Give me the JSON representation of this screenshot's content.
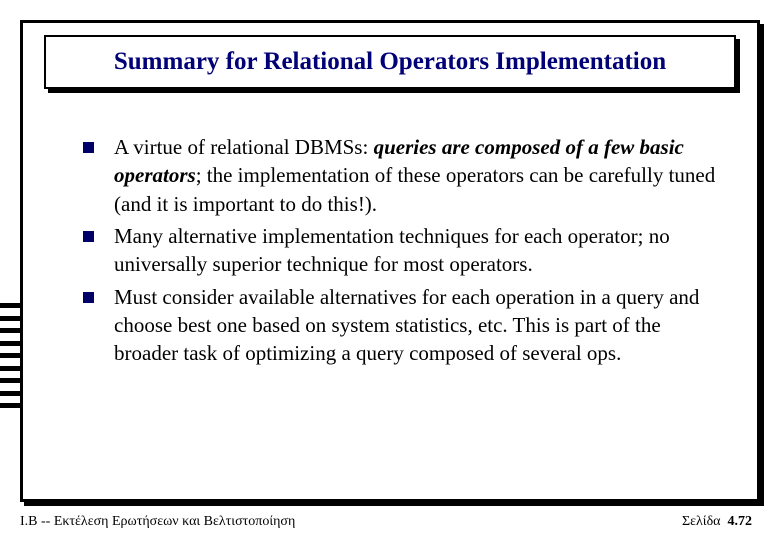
{
  "slide": {
    "title": "Summary for Relational Operators Implementation",
    "bullets": [
      {
        "pre": "A virtue of relational DBMSs: ",
        "emph": "queries are composed of a few basic operators",
        "post": "; the implementation of these operators can be carefully tuned (and it is important to do this!)."
      },
      {
        "pre": "Many alternative implementation techniques for each operator; no universally superior technique for most operators.",
        "emph": "",
        "post": ""
      },
      {
        "pre": "Must consider available alternatives for each operation in a query and choose best one based on system statistics, etc.  This is part of the broader task of optimizing a query composed of several ops.",
        "emph": "",
        "post": ""
      }
    ],
    "footer_left": "Ι.Β -- Εκτέλεση Ερωτήσεων και Βελτιστοποίηση",
    "footer_right_label": "Σελίδα",
    "footer_right_page": "4.72",
    "styling": {
      "title_color": "#000077",
      "title_fontsize": 25,
      "body_fontsize": 21,
      "bullet_color": "#000066",
      "bullet_size": 11,
      "border_color": "#000000",
      "background_color": "#ffffff",
      "stripe_count": 9,
      "stripe_color": "#000000",
      "font_family": "Times New Roman"
    }
  }
}
